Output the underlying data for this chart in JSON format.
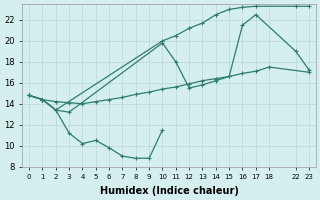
{
  "xlabel": "Humidex (Indice chaleur)",
  "bg_color": "#d5eeee",
  "grid_color": "#b8d8d8",
  "line_color": "#2e7d6e",
  "yticks": [
    8,
    10,
    12,
    14,
    16,
    18,
    20,
    22
  ],
  "ylim": [
    8.0,
    23.5
  ],
  "xlim": [
    -0.5,
    21.5
  ],
  "xtick_positions": [
    0,
    1,
    2,
    3,
    4,
    5,
    6,
    7,
    8,
    9,
    10,
    11,
    12,
    13,
    14,
    15,
    16,
    17,
    18,
    20,
    21
  ],
  "xtick_labels": [
    "0",
    "1",
    "2",
    "3",
    "4",
    "5",
    "6",
    "7",
    "8",
    "9",
    "10",
    "11",
    "12",
    "13",
    "14",
    "15",
    "16",
    "17",
    "18",
    "22",
    "23"
  ],
  "series1_x": [
    0,
    1,
    2,
    3,
    4,
    5,
    6,
    7,
    8,
    9,
    10
  ],
  "series1_y": [
    14.8,
    14.4,
    13.4,
    11.2,
    10.2,
    10.5,
    9.8,
    9.0,
    8.8,
    8.8,
    11.5
  ],
  "series2_x": [
    0,
    1,
    2,
    3,
    4,
    5,
    6,
    7,
    8,
    9,
    10,
    11,
    12,
    13,
    14,
    15,
    16,
    17,
    18,
    21
  ],
  "series2_y": [
    14.8,
    14.4,
    14.2,
    14.1,
    14.0,
    14.2,
    14.4,
    14.6,
    14.9,
    15.1,
    15.4,
    15.6,
    15.9,
    16.2,
    16.4,
    16.6,
    16.9,
    17.1,
    17.5,
    17.0
  ],
  "series3_x": [
    0,
    1,
    2,
    3,
    10,
    11,
    12,
    13,
    14,
    15,
    16,
    17,
    20,
    21
  ],
  "series3_y": [
    14.8,
    14.4,
    13.4,
    13.2,
    19.8,
    18.0,
    15.5,
    15.8,
    16.2,
    16.6,
    21.5,
    22.5,
    19.0,
    17.2
  ],
  "series4_x": [
    0,
    1,
    2,
    10,
    11,
    12,
    13,
    14,
    15,
    16,
    17,
    20,
    21
  ],
  "series4_y": [
    14.8,
    14.4,
    13.4,
    20.0,
    20.5,
    21.2,
    21.7,
    22.5,
    23.0,
    23.2,
    23.3,
    23.3,
    23.3
  ]
}
